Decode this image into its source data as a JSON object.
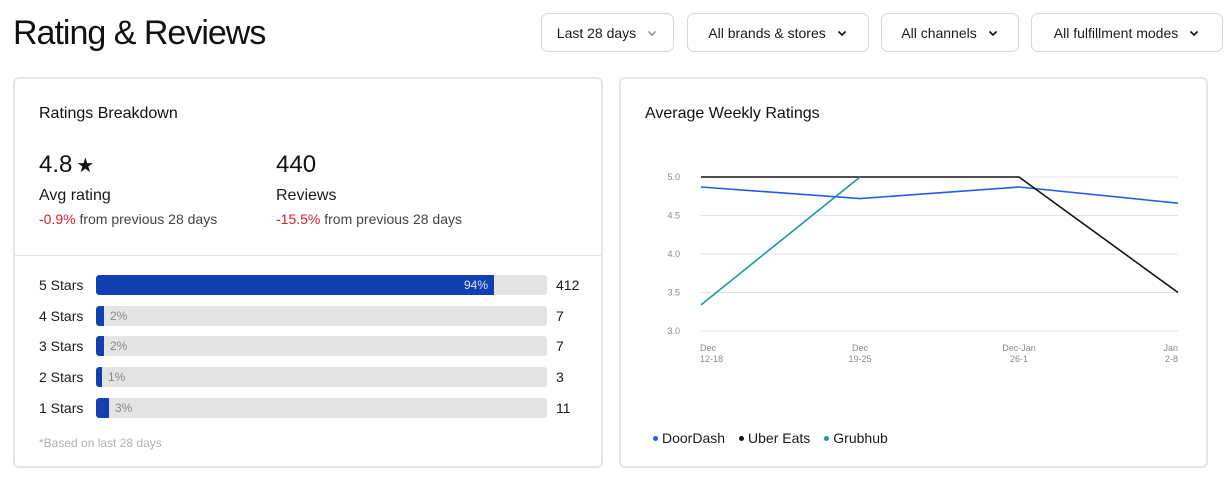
{
  "page": {
    "title": "Rating & Reviews"
  },
  "filters": {
    "date": "Last 28 days",
    "brands": "All brands & stores",
    "channels": "All channels",
    "fulfillment": "All fulfillment modes"
  },
  "breakdown": {
    "title": "Ratings Breakdown",
    "avg": {
      "value": "4.8",
      "icon": "star-icon",
      "label": "Avg rating",
      "change": "-0.9%",
      "change_suffix": "from previous 28 days"
    },
    "reviews": {
      "value": "440",
      "label": "Reviews",
      "change": "-15.5%",
      "change_suffix": "from previous 28 days"
    },
    "bars": [
      {
        "label": "5 Stars",
        "pct_label": "94%",
        "pct": 0.94,
        "count": "412"
      },
      {
        "label": "4 Stars",
        "pct_label": "2%",
        "pct": 0.02,
        "count": "7"
      },
      {
        "label": "3 Stars",
        "pct_label": "2%",
        "pct": 0.02,
        "count": "7"
      },
      {
        "label": "2 Stars",
        "pct_label": "1%",
        "pct": 0.01,
        "count": "3"
      },
      {
        "label": "1 Stars",
        "pct_label": "3%",
        "pct": 0.03,
        "count": "11"
      }
    ],
    "footnote": "*Based on last 28 days"
  },
  "weekly": {
    "title": "Average Weekly Ratings"
  },
  "chart_data": {
    "type": "line",
    "categories": [
      [
        "Dec",
        "12-18"
      ],
      [
        "Dec",
        "19-25"
      ],
      [
        "Dec-Jan",
        "26-1"
      ],
      [
        "Jan",
        "2-8"
      ]
    ],
    "y_ticks": [
      "5.0",
      "4.5",
      "4.0",
      "3.5",
      "3.0"
    ],
    "ylim": [
      3.0,
      5.0
    ],
    "grid": true,
    "legend_position": "bottom-left",
    "series": [
      {
        "name": "DoorDash",
        "color": "#1f5ee6",
        "values": [
          4.87,
          4.72,
          4.87,
          4.66
        ]
      },
      {
        "name": "Uber Eats",
        "color": "#111111",
        "values": [
          5.0,
          5.0,
          5.0,
          3.5
        ]
      },
      {
        "name": "Grubhub",
        "color": "#1f97a0",
        "values": [
          3.34,
          5.0,
          null,
          null
        ]
      }
    ]
  }
}
